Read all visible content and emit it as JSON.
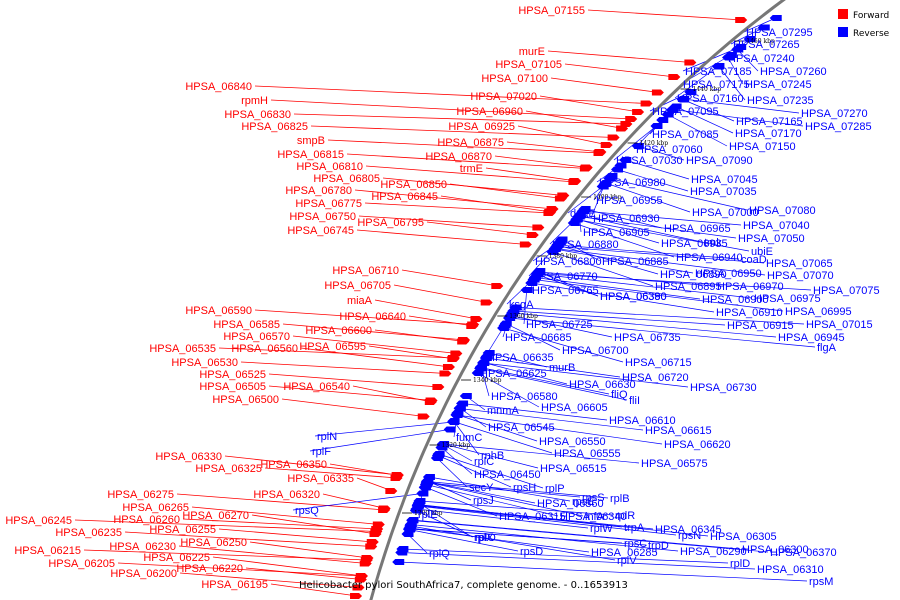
{
  "caption": "Helicobacter pylori SouthAfrica7, complete genome. - 0..1653913",
  "legend": [
    {
      "label": "Forward",
      "color": "#ff0000"
    },
    {
      "label": "Reverse",
      "color": "#0000ff"
    }
  ],
  "ticks": [
    "1300 kbp",
    "1320 kbp",
    "1340 kbp",
    "1360 kbp",
    "1380 kbp",
    "1400 kbp",
    "1420 kbp",
    "1440 kbp",
    "1460 kbp"
  ],
  "forward_labels": [
    "HPSA_07155",
    "murE",
    "HPSA_07105",
    "HPSA_07100",
    "HPSA_07020",
    "HPSA_06960",
    "HPSA_06925",
    "HPSA_06875",
    "HPSA_06870",
    "trmE",
    "HPSA_06850",
    "HPSA_06845",
    "HPSA_06840",
    "rpmH",
    "HPSA_06830",
    "HPSA_06825",
    "smpB",
    "HPSA_06815",
    "HPSA_06810",
    "HPSA_06805",
    "HPSA_06780",
    "HPSA_06775",
    "HPSA_06750",
    "HPSA_06795",
    "HPSA_06745",
    "HPSA_06710",
    "HPSA_06705",
    "miaA",
    "HPSA_06640",
    "HPSA_06600",
    "HPSA_06595",
    "HPSA_06590",
    "HPSA_06585",
    "HPSA_06570",
    "HPSA_06560",
    "HPSA_06535",
    "HPSA_06530",
    "HPSA_06525",
    "HPSA_06505",
    "HPSA_06540",
    "HPSA_06500",
    "HPSA_06330",
    "HPSA_06325",
    "HPSA_06350",
    "HPSA_06335",
    "HPSA_06320",
    "HPSA_06275",
    "HPSA_06265",
    "HPSA_06270",
    "HPSA_06260",
    "HPSA_06245",
    "HPSA_06255",
    "HPSA_06235",
    "HPSA_06250",
    "HPSA_06230",
    "HPSA_06225",
    "HPSA_06215",
    "HPSA_06220",
    "HPSA_06205",
    "HPSA_06200",
    "HPSA_06195"
  ],
  "reverse_labels": [
    "HPSA_07295",
    "HPSA_07265",
    "HPSA_07240",
    "HPSA_07260",
    "HPSA_07185",
    "HPSA_07245",
    "HPSA_07175",
    "HPSA_07160",
    "HPSA_07235",
    "HPSA_07270",
    "HPSA_07285",
    "HPSA_07095",
    "HPSA_07165",
    "HPSA_07085",
    "HPSA_07170",
    "HPSA_07060",
    "HPSA_07150",
    "HPSA_07030",
    "HPSA_07090",
    "HPSA_06980",
    "HPSA_07045",
    "HPSA_07035",
    "HPSA_06955",
    "dnaE",
    "HPSA_07000",
    "HPSA_07080",
    "HPSA_06930",
    "HPSA_07040",
    "HPSA_06905",
    "HPSA_06965",
    "HPSA_07050",
    "HPSA_06935",
    "tmk",
    "HPSA_06880",
    "ubiE",
    "HPSA_06940",
    "coaD",
    "HPSA_07065",
    "HPSA_06800",
    "HPSA_06885",
    "HPSA_06950",
    "HPSA_07070",
    "HPSA_06890",
    "HPSA_06770",
    "HPSA_06895",
    "HPSA_06970",
    "HPSA_07075",
    "HPSA_06765",
    "HPSA_06900",
    "HPSA_06975",
    "ksgA",
    "HPSA_06910",
    "HPSA_06995",
    "HPSA_06725",
    "HPSA_06915",
    "HPSA_07015",
    "HPSA_06685",
    "HPSA_06735",
    "HPSA_06945",
    "HPSA_06700",
    "flgA",
    "HPSA_06635",
    "HPSA_06715",
    "murB",
    "HPSA_06625",
    "HPSA_06720",
    "HPSA_06630",
    "HPSA_06730",
    "fliQ",
    "HPSA_06580",
    "fliI",
    "HPSA_06605",
    "mnmA",
    "HPSA_06610",
    "HPSA_06545",
    "HPSA_06615",
    "fumC",
    "HPSA_06550",
    "HPSA_06620",
    "HPSA_06555",
    "rnhB",
    "rplN",
    "rplC",
    "HPSA_06575",
    "rplF",
    "HPSA_06515",
    "HPSA_06450",
    "secY",
    "rpsH",
    "rplP",
    "rpsS",
    "rplB",
    "rpsJ",
    "HPSA_06360",
    "rpsE",
    "rplE",
    "HPSA_06315",
    "HPSA_06340",
    "infA",
    "rplR",
    "rpsQ",
    "rplW",
    "trpA",
    "HPSA_06345",
    "rplO",
    "rpsN",
    "HPSA_06305",
    "rplX",
    "rpsC",
    "trpD",
    "rplQ",
    "rpsD",
    "HPSA_06285",
    "HPSA_06290",
    "HPSA_06300",
    "HPSA_06370",
    "rplV",
    "rplD",
    "HPSA_06310",
    "rpsM",
    "HPSA_06380",
    "HPSA_06390"
  ]
}
